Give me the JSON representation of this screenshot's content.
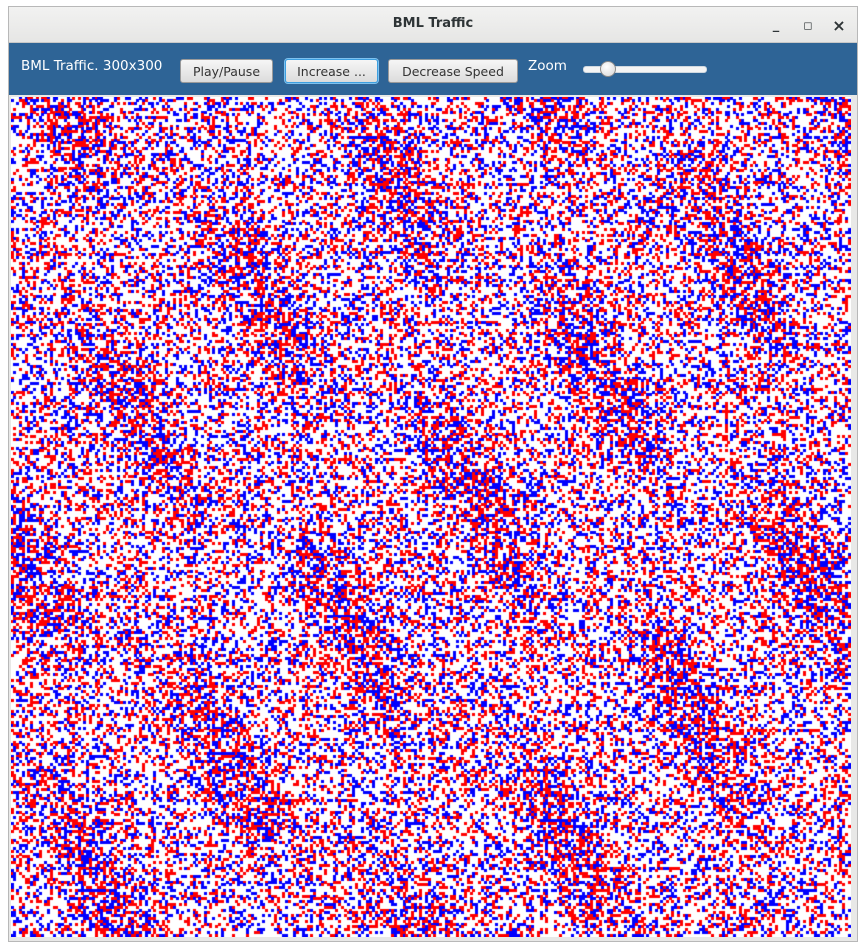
{
  "window": {
    "title": "BML Traffic",
    "controls": {
      "minimize": "_",
      "maximize": "◻",
      "close": "×"
    }
  },
  "toolbar": {
    "label": "BML Traffic. 300x300",
    "play_pause_label": "Play/Pause",
    "increase_label": "Increase ...",
    "decrease_label": "Decrease Speed",
    "zoom_label": "Zoom",
    "zoom_level_fraction": 0.15
  },
  "grid": {
    "rows": 300,
    "cols": 300,
    "colors": {
      "empty": "#ffffff",
      "red_car": "#ff0000",
      "blue_car": "#0000ff"
    }
  },
  "colors": {
    "toolbar_bg": "#2e6496",
    "titlebar_bg": "#eeeeed"
  }
}
